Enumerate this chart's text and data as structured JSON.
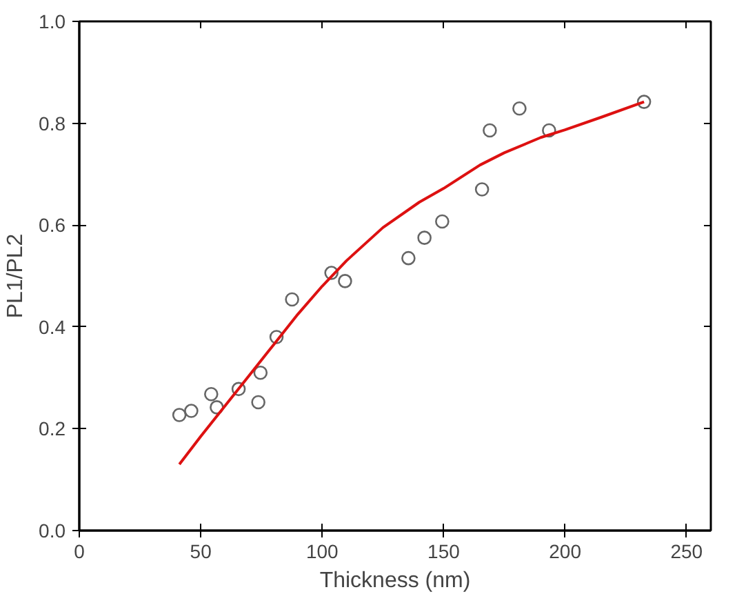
{
  "chart_data": {
    "type": "scatter",
    "xlabel": "Thickness (nm)",
    "ylabel": "PL1/PL2",
    "xlim": [
      0,
      260
    ],
    "ylim": [
      0,
      1.0
    ],
    "xticks": [
      0,
      50,
      100,
      150,
      200,
      250
    ],
    "yticks": [
      {
        "value": 0,
        "label": "0.0"
      },
      0.2,
      0.4,
      0.6,
      0.8,
      {
        "value": 1.0,
        "label": "1.0"
      }
    ],
    "grid": false,
    "series": [
      {
        "marker": "circle",
        "color": "#666666",
        "x": [
          41.2,
          46.1,
          54.3,
          56.6,
          65.6,
          73.7,
          74.6,
          81.2,
          87.6,
          103.8,
          109.4,
          135.5,
          142.1,
          149.4,
          165.8,
          169.0,
          181.2,
          193.4,
          232.5
        ],
        "values": [
          0.227,
          0.235,
          0.268,
          0.242,
          0.278,
          0.252,
          0.31,
          0.38,
          0.454,
          0.506,
          0.49,
          0.535,
          0.575,
          0.607,
          0.67,
          0.786,
          0.829,
          0.786,
          0.842
        ]
      },
      {
        "type": "line",
        "marker": "none",
        "color": "#dd1111",
        "line_style": "solid",
        "x": [
          41.2,
          50,
          60,
          70,
          80,
          90,
          100,
          110,
          125,
          140,
          150,
          165,
          175,
          190,
          200,
          215,
          232.5
        ],
        "values": [
          0.13,
          0.185,
          0.245,
          0.305,
          0.365,
          0.425,
          0.48,
          0.53,
          0.595,
          0.645,
          0.672,
          0.718,
          0.742,
          0.772,
          0.787,
          0.812,
          0.842
        ]
      }
    ]
  }
}
